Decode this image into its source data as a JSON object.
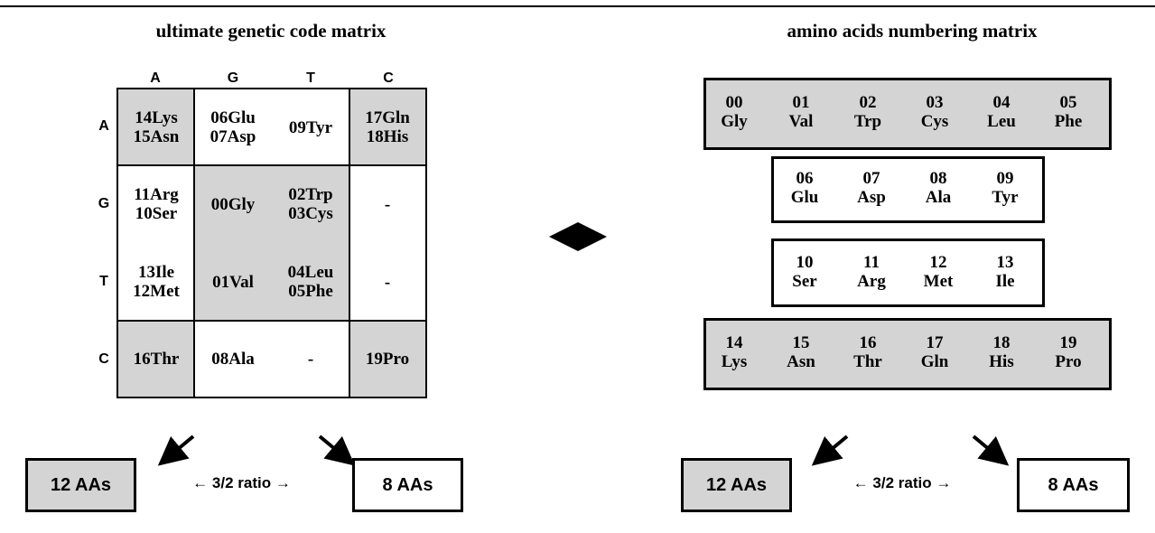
{
  "left": {
    "title": "ultimate genetic code matrix",
    "col_headers": [
      "A",
      "G",
      "T",
      "C"
    ],
    "row_headers": [
      "A",
      "G",
      "T",
      "C"
    ],
    "cells": [
      [
        "14Lys\n15Asn",
        "06Glu\n07Asp",
        "09Tyr",
        "17Gln\n18His"
      ],
      [
        "11Arg\n10Ser",
        "00Gly",
        "02Trp\n03Cys",
        "-"
      ],
      [
        "13Ile\n12Met",
        "01Val",
        "04Leu\n05Phe",
        "-"
      ],
      [
        "16Thr",
        "08Ala",
        "-",
        "19Pro"
      ]
    ],
    "gray_box": "12 AAs",
    "white_box": "8 AAs",
    "ratio": "← 3/2 ratio →"
  },
  "right": {
    "title": "amino acids numbering matrix",
    "rows": [
      [
        [
          "00",
          "Gly"
        ],
        [
          "01",
          "Val"
        ],
        [
          "02",
          "Trp"
        ],
        [
          "03",
          "Cys"
        ],
        [
          "04",
          "Leu"
        ],
        [
          "05",
          "Phe"
        ]
      ],
      [
        [
          "06",
          "Glu"
        ],
        [
          "07",
          "Asp"
        ],
        [
          "08",
          "Ala"
        ],
        [
          "09",
          "Tyr"
        ]
      ],
      [
        [
          "10",
          "Ser"
        ],
        [
          "11",
          "Arg"
        ],
        [
          "12",
          "Met"
        ],
        [
          "13",
          "Ile"
        ]
      ],
      [
        [
          "14",
          "Lys"
        ],
        [
          "15",
          "Asn"
        ],
        [
          "16",
          "Thr"
        ],
        [
          "17",
          "Gln"
        ],
        [
          "18",
          "His"
        ],
        [
          "19",
          "Pro"
        ]
      ]
    ],
    "gray_box": "12 AAs",
    "white_box": "8 AAs",
    "ratio": "← 3/2 ratio →"
  },
  "colors": {
    "gray": "#d4d4d4",
    "line": "#000000"
  }
}
